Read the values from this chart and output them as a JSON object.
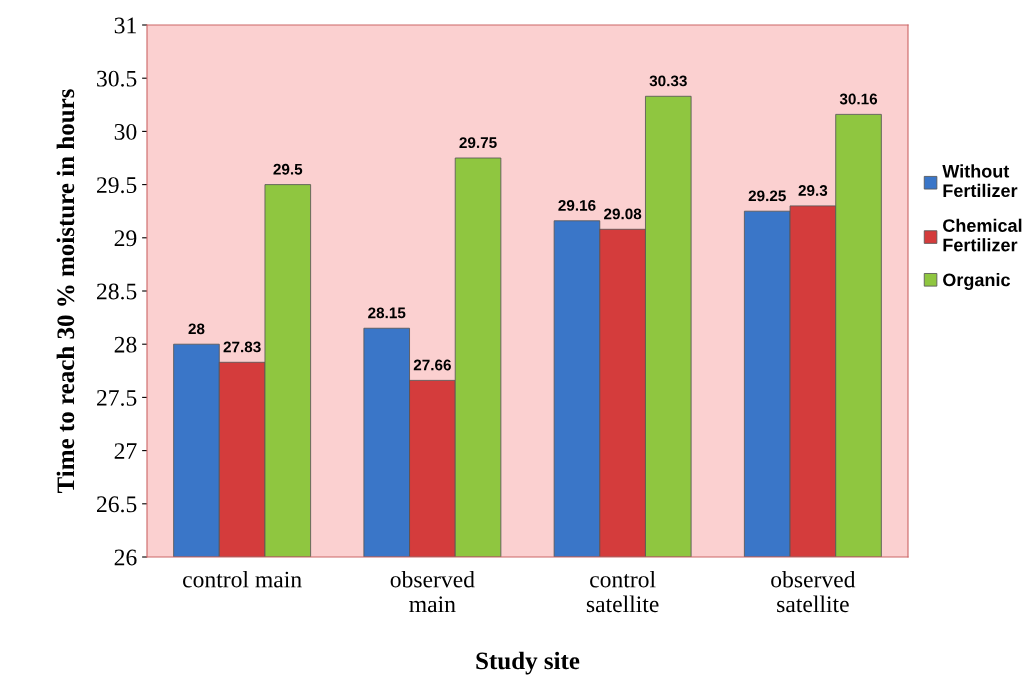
{
  "chart_data": {
    "type": "bar",
    "categories": [
      "control main",
      "observed\nmain",
      "control\nsatellite",
      "observed\nsatellite"
    ],
    "series": [
      {
        "name": "Without\nFertilizer",
        "color": "#3a76c8",
        "values": [
          28,
          28.15,
          29.16,
          29.25
        ]
      },
      {
        "name": "Chemical\nFertilizer",
        "color": "#d43c3c",
        "values": [
          27.83,
          27.66,
          29.08,
          29.3
        ]
      },
      {
        "name": "Organic",
        "color": "#8fc640",
        "values": [
          29.5,
          29.75,
          30.33,
          30.16
        ]
      }
    ],
    "xlabel": "Study site",
    "ylabel": "Time to reach 30 % moisture in hours",
    "ylim": [
      26,
      31
    ],
    "yticks": [
      26,
      26.5,
      27,
      27.5,
      28,
      28.5,
      29,
      29.5,
      30,
      30.5,
      31
    ],
    "data_labels": true,
    "grid": false,
    "legend": "right"
  }
}
